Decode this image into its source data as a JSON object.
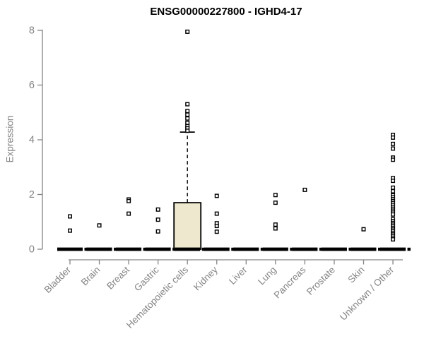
{
  "chart_data": {
    "type": "boxplot",
    "title": "ENSG00000227800 - IGHD4-17",
    "ylabel": "Expression",
    "xlabel": "",
    "ylim": [
      0,
      8
    ],
    "yticks": [
      0,
      2,
      4,
      6,
      8
    ],
    "grid": false,
    "legend": "none",
    "categories": [
      "Bladder",
      "Brain",
      "Breast",
      "Gastric",
      "Hematopoietic cells",
      "Kidney",
      "Liver",
      "Lung",
      "Pancreas",
      "Prostate",
      "Skin",
      "Unknown / Other"
    ],
    "groups": [
      {
        "category": "Bladder",
        "q1": 0,
        "median": 0,
        "q3": 0,
        "whisker_low": 0,
        "whisker_high": 0,
        "outliers": [
          1.2,
          0.68
        ]
      },
      {
        "category": "Brain",
        "q1": 0,
        "median": 0,
        "q3": 0,
        "whisker_low": 0,
        "whisker_high": 0,
        "outliers": [
          0.87
        ]
      },
      {
        "category": "Breast",
        "q1": 0,
        "median": 0,
        "q3": 0,
        "whisker_low": 0,
        "whisker_high": 0,
        "outliers": [
          1.82,
          1.76,
          1.3
        ]
      },
      {
        "category": "Gastric",
        "q1": 0,
        "median": 0,
        "q3": 0,
        "whisker_low": 0,
        "whisker_high": 0,
        "outliers": [
          1.45,
          1.08,
          0.65
        ]
      },
      {
        "category": "Hematopoietic cells",
        "q1": 0,
        "median": 0,
        "q3": 1.7,
        "whisker_low": 0,
        "whisker_high": 4.28,
        "outliers": [
          7.95,
          5.3,
          5.05,
          4.92,
          4.78,
          4.62,
          4.5,
          4.42,
          4.33
        ]
      },
      {
        "category": "Kidney",
        "q1": 0,
        "median": 0,
        "q3": 0,
        "whisker_low": 0,
        "whisker_high": 0,
        "outliers": [
          1.95,
          1.3,
          0.95,
          0.85,
          0.64
        ]
      },
      {
        "category": "Liver",
        "q1": 0,
        "median": 0,
        "q3": 0,
        "whisker_low": 0,
        "whisker_high": 0,
        "outliers": []
      },
      {
        "category": "Lung",
        "q1": 0,
        "median": 0,
        "q3": 0,
        "whisker_low": 0,
        "whisker_high": 0,
        "outliers": [
          1.98,
          1.7,
          0.9,
          0.76
        ]
      },
      {
        "category": "Pancreas",
        "q1": 0,
        "median": 0,
        "q3": 0,
        "whisker_low": 0,
        "whisker_high": 0,
        "outliers": [
          2.17
        ]
      },
      {
        "category": "Prostate",
        "q1": 0,
        "median": 0,
        "q3": 0,
        "whisker_low": 0,
        "whisker_high": 0,
        "outliers": []
      },
      {
        "category": "Skin",
        "q1": 0,
        "median": 0,
        "q3": 0,
        "whisker_low": 0,
        "whisker_high": 0,
        "outliers": [
          0.73
        ]
      },
      {
        "category": "Unknown / Other",
        "q1": 0,
        "median": 0,
        "q3": 0,
        "whisker_low": 0,
        "whisker_high": 0,
        "outliers": [
          4.18,
          4.08,
          3.85,
          3.68,
          3.35,
          3.27,
          2.6,
          2.5,
          2.25,
          2.12,
          1.97,
          1.9,
          1.83,
          1.76,
          1.69,
          1.62,
          1.55,
          1.48,
          1.41,
          1.34,
          1.27,
          1.1,
          1.03,
          0.96,
          0.9,
          0.84,
          0.78,
          0.72,
          0.66,
          0.6,
          0.54,
          0.48,
          0.42,
          0.36
        ]
      }
    ],
    "colors": {
      "box_fill": "#EDE8CE",
      "box_border": "#000000",
      "median": "#000000",
      "outlier_stroke": "#000000",
      "outlier_fill": "#ffffff",
      "axis": "#848484",
      "tick_label": "#848484",
      "title": "#000000",
      "background": "#ffffff"
    }
  }
}
